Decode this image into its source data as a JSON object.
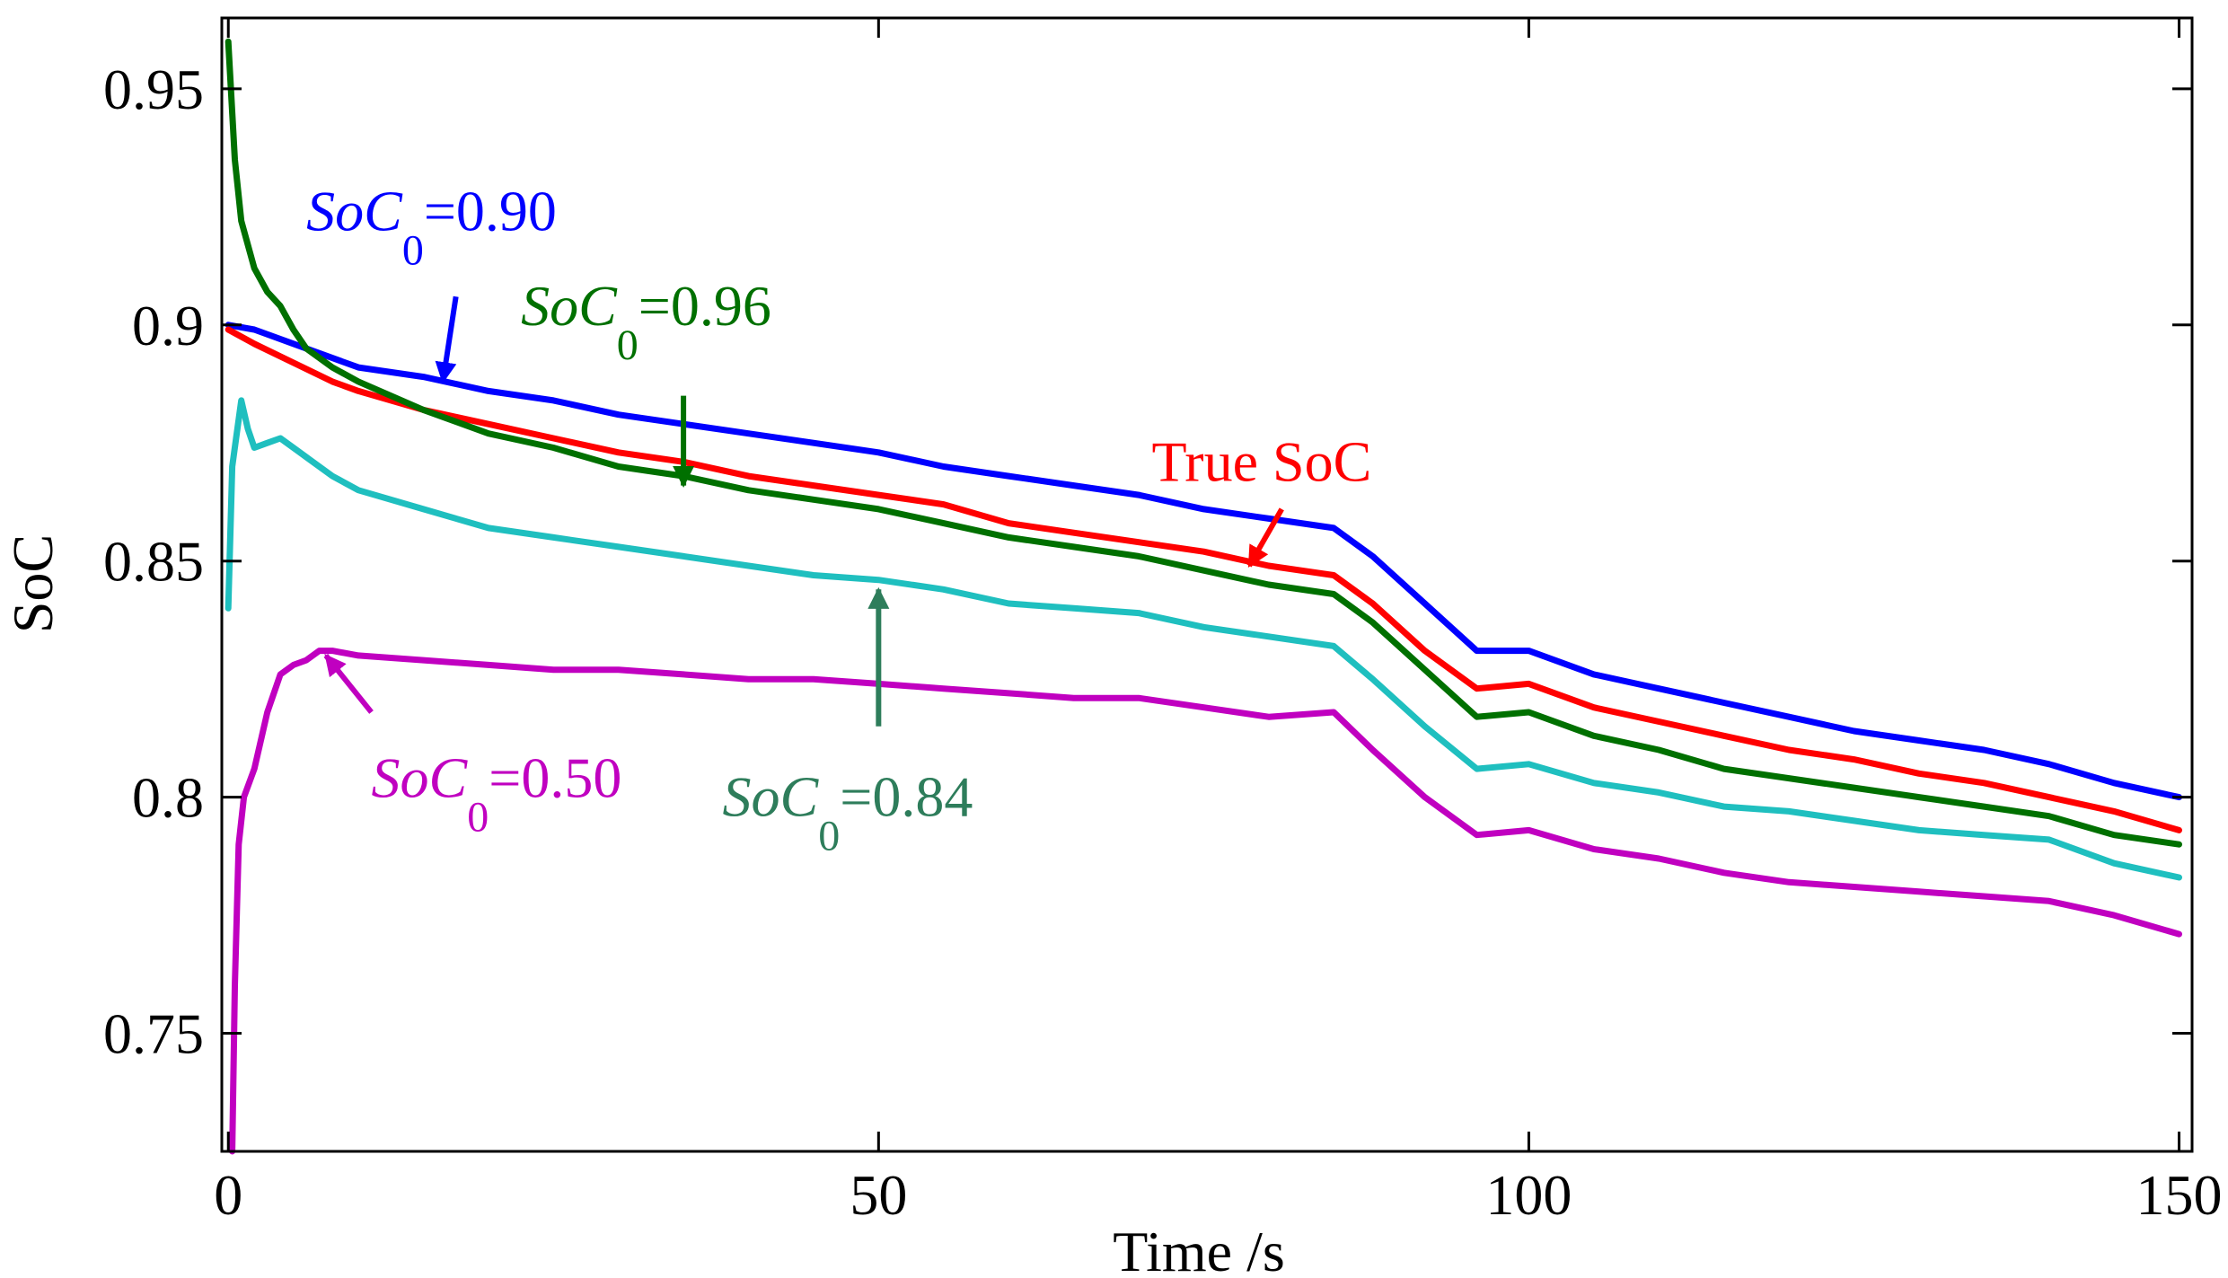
{
  "chart_data": {
    "type": "line",
    "title": "",
    "xlabel": "Time /s",
    "ylabel": "SoC",
    "xlim": [
      -0.5,
      151
    ],
    "ylim": [
      0.725,
      0.965
    ],
    "xticks": [
      0,
      50,
      100,
      150
    ],
    "xtick_labels": [
      "0",
      "50",
      "100",
      "150"
    ],
    "yticks": [
      0.75,
      0.8,
      0.85,
      0.9,
      0.95
    ],
    "ytick_labels": [
      "0.75",
      "0.8",
      "0.85",
      "0.9",
      "0.95"
    ],
    "grid": false,
    "series": [
      {
        "name": "SoC0=0.90",
        "color": "#0000ff",
        "x": [
          0,
          2,
          5,
          8,
          10,
          15,
          20,
          25,
          30,
          35,
          40,
          45,
          50,
          55,
          60,
          65,
          70,
          75,
          80,
          85,
          88,
          92,
          96,
          100,
          105,
          110,
          115,
          120,
          125,
          130,
          135,
          140,
          145,
          150
        ],
        "y": [
          0.9,
          0.899,
          0.896,
          0.893,
          0.891,
          0.889,
          0.886,
          0.884,
          0.881,
          0.879,
          0.877,
          0.875,
          0.873,
          0.87,
          0.868,
          0.866,
          0.864,
          0.861,
          0.859,
          0.857,
          0.851,
          0.841,
          0.831,
          0.831,
          0.826,
          0.823,
          0.82,
          0.817,
          0.814,
          0.812,
          0.81,
          0.807,
          0.803,
          0.8
        ]
      },
      {
        "name": "True SoC",
        "color": "#ff0000",
        "x": [
          0,
          2,
          5,
          8,
          10,
          15,
          20,
          25,
          30,
          35,
          40,
          45,
          50,
          55,
          60,
          65,
          70,
          75,
          80,
          85,
          88,
          92,
          96,
          100,
          105,
          110,
          115,
          120,
          125,
          130,
          135,
          140,
          145,
          150
        ],
        "y": [
          0.899,
          0.896,
          0.892,
          0.888,
          0.886,
          0.882,
          0.879,
          0.876,
          0.873,
          0.871,
          0.868,
          0.866,
          0.864,
          0.862,
          0.858,
          0.856,
          0.854,
          0.852,
          0.849,
          0.847,
          0.841,
          0.831,
          0.823,
          0.824,
          0.819,
          0.816,
          0.813,
          0.81,
          0.808,
          0.805,
          0.803,
          0.8,
          0.797,
          0.793
        ]
      },
      {
        "name": "SoC0=0.96",
        "color": "#007000",
        "x": [
          0,
          0.5,
          1,
          2,
          3,
          4,
          5,
          6,
          8,
          10,
          15,
          20,
          25,
          30,
          35,
          40,
          45,
          50,
          55,
          60,
          65,
          70,
          75,
          80,
          85,
          88,
          92,
          96,
          100,
          105,
          110,
          115,
          120,
          125,
          130,
          135,
          140,
          145,
          150
        ],
        "y": [
          0.96,
          0.935,
          0.922,
          0.912,
          0.907,
          0.904,
          0.899,
          0.895,
          0.891,
          0.888,
          0.882,
          0.877,
          0.874,
          0.87,
          0.868,
          0.865,
          0.863,
          0.861,
          0.858,
          0.855,
          0.853,
          0.851,
          0.848,
          0.845,
          0.843,
          0.837,
          0.827,
          0.817,
          0.818,
          0.813,
          0.81,
          0.806,
          0.804,
          0.802,
          0.8,
          0.798,
          0.796,
          0.792,
          0.79
        ]
      },
      {
        "name": "SoC0=0.84",
        "color": "#1fbfbf",
        "x": [
          0,
          0.3,
          0.6,
          1,
          1.5,
          2,
          3,
          4,
          5,
          6,
          8,
          10,
          15,
          20,
          25,
          30,
          35,
          40,
          45,
          50,
          55,
          60,
          65,
          70,
          75,
          80,
          85,
          88,
          92,
          96,
          100,
          105,
          110,
          115,
          120,
          125,
          130,
          135,
          140,
          145,
          150
        ],
        "y": [
          0.84,
          0.87,
          0.876,
          0.884,
          0.878,
          0.874,
          0.875,
          0.876,
          0.874,
          0.872,
          0.868,
          0.865,
          0.861,
          0.857,
          0.855,
          0.853,
          0.851,
          0.849,
          0.847,
          0.846,
          0.844,
          0.841,
          0.84,
          0.839,
          0.836,
          0.834,
          0.832,
          0.825,
          0.815,
          0.806,
          0.807,
          0.803,
          0.801,
          0.798,
          0.797,
          0.795,
          0.793,
          0.792,
          0.791,
          0.786,
          0.783
        ]
      },
      {
        "name": "SoC0=0.50",
        "color": "#c000c0",
        "x": [
          0.3,
          0.5,
          0.8,
          1.2,
          2,
          3,
          4,
          5,
          6,
          7,
          8,
          10,
          15,
          20,
          25,
          30,
          35,
          40,
          45,
          50,
          55,
          60,
          65,
          70,
          75,
          80,
          85,
          88,
          92,
          96,
          100,
          105,
          110,
          115,
          120,
          125,
          130,
          135,
          140,
          145,
          150
        ],
        "y": [
          0.725,
          0.76,
          0.79,
          0.8,
          0.806,
          0.818,
          0.826,
          0.828,
          0.829,
          0.831,
          0.831,
          0.83,
          0.829,
          0.828,
          0.827,
          0.827,
          0.826,
          0.825,
          0.825,
          0.824,
          0.823,
          0.822,
          0.821,
          0.821,
          0.819,
          0.817,
          0.818,
          0.81,
          0.8,
          0.792,
          0.793,
          0.789,
          0.787,
          0.784,
          0.782,
          0.781,
          0.78,
          0.779,
          0.778,
          0.775,
          0.771
        ]
      }
    ],
    "annotations": [
      {
        "text_main": "SoC",
        "text_sub": "0",
        "text_value": "=0.90",
        "color": "#0000ff",
        "label_at": [
          6,
          0.92
        ],
        "arrow_from": [
          17.5,
          0.906
        ],
        "arrow_to": [
          16.5,
          0.888
        ]
      },
      {
        "text_main": "SoC",
        "text_sub": "0",
        "text_value": "=0.96",
        "color": "#007000",
        "label_at": [
          22.5,
          0.9
        ],
        "arrow_from": [
          35,
          0.885
        ],
        "arrow_to": [
          35,
          0.866
        ]
      },
      {
        "text_main": "True SoC",
        "text_sub": "",
        "text_value": "",
        "color": "#ff0000",
        "label_at": [
          71,
          0.867
        ],
        "arrow_from": [
          81,
          0.861
        ],
        "arrow_to": [
          78.5,
          0.849
        ]
      },
      {
        "text_main": "SoC",
        "text_sub": "0",
        "text_value": "=0.84",
        "color": "#2e7d5b",
        "label_at": [
          38,
          0.796
        ],
        "arrow_from": [
          50,
          0.815
        ],
        "arrow_to": [
          50,
          0.844
        ]
      },
      {
        "text_main": "SoC",
        "text_sub": "0",
        "text_value": "=0.50",
        "color": "#c000c0",
        "label_at": [
          11,
          0.8
        ],
        "arrow_from": [
          11,
          0.818
        ],
        "arrow_to": [
          7.5,
          0.83
        ]
      }
    ]
  }
}
